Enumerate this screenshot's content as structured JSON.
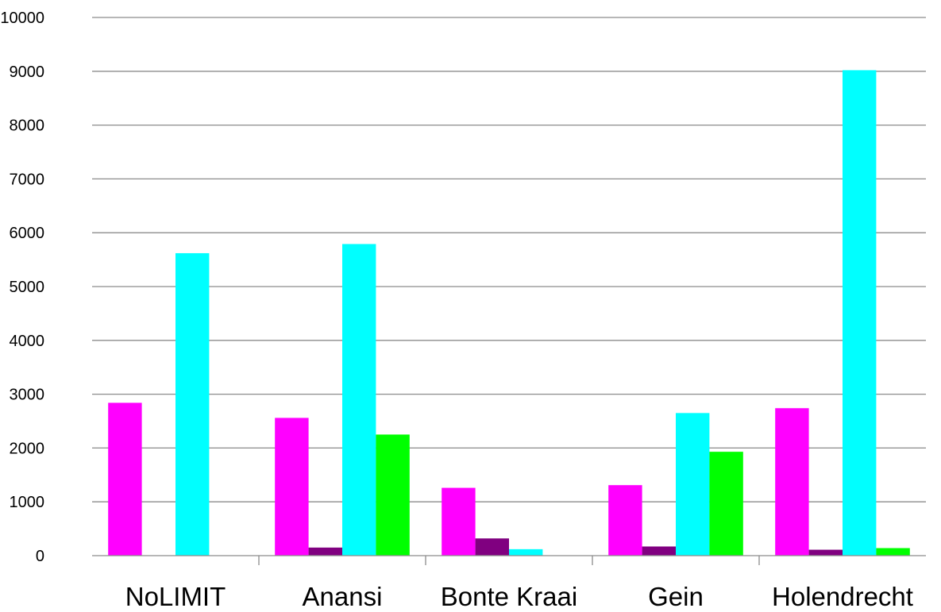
{
  "chart_data": {
    "type": "bar",
    "categories": [
      "NoLIMIT",
      "Anansi",
      "Bonte Kraai",
      "Gein",
      "Holendrecht"
    ],
    "series": [
      {
        "color": "#ff00ff",
        "values": [
          2840,
          2560,
          1260,
          1310,
          2740
        ]
      },
      {
        "color": "#800080",
        "values": [
          0,
          150,
          320,
          170,
          110
        ]
      },
      {
        "color": "#00ffff",
        "values": [
          5620,
          5790,
          120,
          2650,
          9020
        ]
      },
      {
        "color": "#00ff00",
        "values": [
          0,
          2250,
          0,
          1930,
          140
        ]
      }
    ],
    "ylim": [
      0,
      10000
    ],
    "yticks": [
      "0",
      "1000",
      "2000",
      "3000",
      "4000",
      "5000",
      "6000",
      "7000",
      "8000",
      "9000",
      "10000"
    ],
    "title": "",
    "xlabel": "",
    "ylabel": "",
    "grid": true,
    "legend": "none"
  }
}
